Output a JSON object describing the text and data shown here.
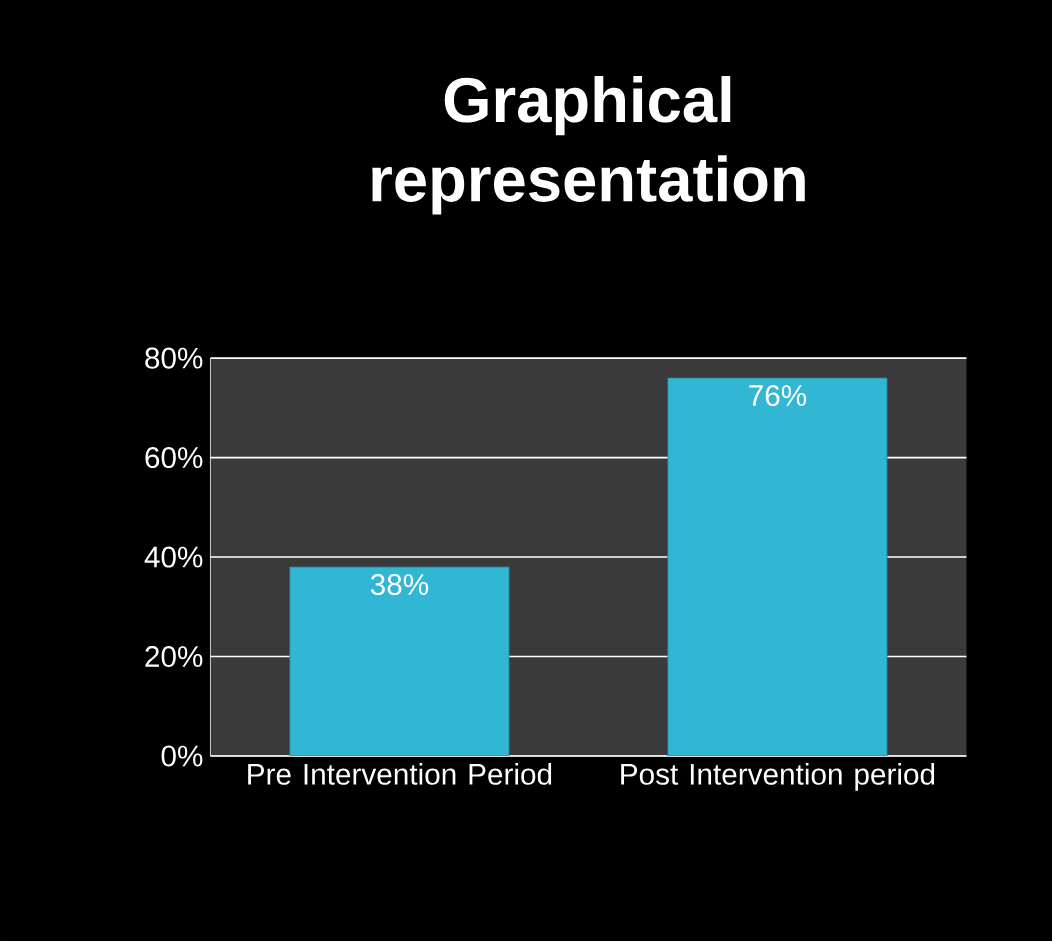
{
  "chart_data": {
    "type": "bar",
    "title": "Graphical representation",
    "categories": [
      "Pre Intervention Period",
      "Post Intervention period"
    ],
    "values": [
      38,
      76
    ],
    "value_labels": [
      "38%",
      "76%"
    ],
    "color": "#31b6d4",
    "ylim": [
      0,
      80
    ],
    "yticks": [
      {
        "value": 0,
        "label": "0%"
      },
      {
        "value": 20,
        "label": "20%"
      },
      {
        "value": 40,
        "label": "40%"
      },
      {
        "value": 60,
        "label": "60%"
      },
      {
        "value": 80,
        "label": "80%"
      }
    ],
    "grid": "y"
  }
}
